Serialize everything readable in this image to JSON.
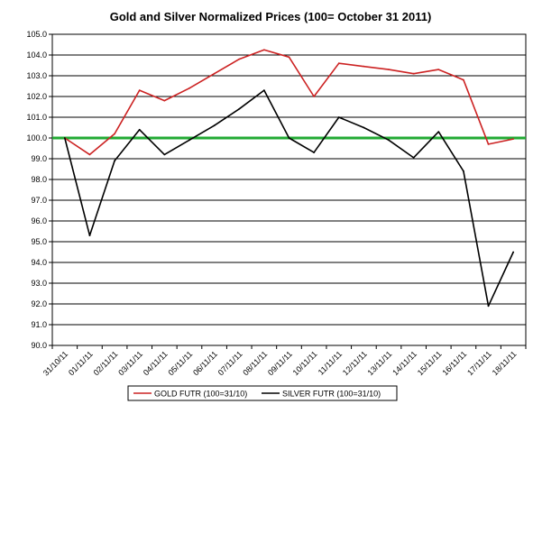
{
  "chart_data": {
    "type": "line",
    "title": "Gold and Silver Normalized Prices  (100= October 31 2011)",
    "xlabel": "",
    "ylabel": "",
    "ylim": [
      90.0,
      105.0
    ],
    "ytick_step": 1.0,
    "categories": [
      "31/10/11",
      "01/11/11",
      "02/11/11",
      "03/11/11",
      "04/11/11",
      "05/11/11",
      "06/11/11",
      "07/11/11",
      "08/11/11",
      "09/11/11",
      "10/11/11",
      "11/11/11",
      "12/11/11",
      "13/11/11",
      "14/11/11",
      "15/11/11",
      "16/11/11",
      "17/11/11",
      "18/11/11"
    ],
    "series": [
      {
        "name": "GOLD  FUTR (100=31/10)",
        "color": "#cc2222",
        "values": [
          100.0,
          99.2,
          100.2,
          102.3,
          101.8,
          102.4,
          103.1,
          103.8,
          104.25,
          103.9,
          102.0,
          103.6,
          103.45,
          103.3,
          103.1,
          103.3,
          102.8,
          99.7,
          99.95
        ]
      },
      {
        "name": "SILVER  FUTR (100=31/10)",
        "color": "#000000",
        "values": [
          100.0,
          95.3,
          98.9,
          100.4,
          99.2,
          99.9,
          100.6,
          101.4,
          102.3,
          100.0,
          99.3,
          101.0,
          100.5,
          99.9,
          99.05,
          100.3,
          98.4,
          91.9,
          94.5
        ]
      }
    ],
    "reference_line": {
      "value": 100.0,
      "color": "#22aa33"
    },
    "grid": true,
    "legend_position": "bottom"
  }
}
